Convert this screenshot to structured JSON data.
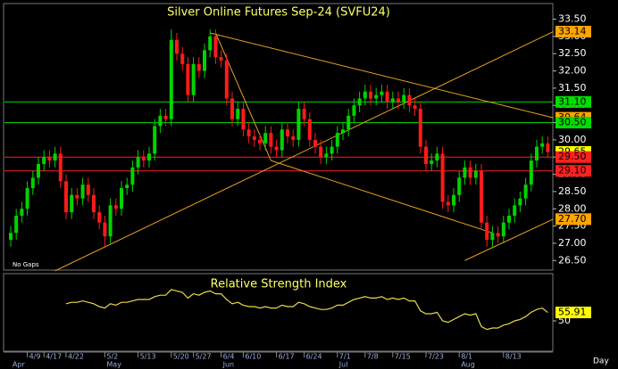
{
  "chart_data": [
    {
      "type": "candlestick",
      "title": "Silver Online Futures Sep-24 (SVFU24)",
      "note": "No Gaps",
      "x_label": "Day",
      "categories": [
        null,
        null,
        null,
        "4/9",
        null,
        null,
        "4/17",
        null,
        null,
        null,
        "4/22",
        null,
        null,
        null,
        null,
        null,
        null,
        "5/2",
        null,
        null,
        null,
        null,
        null,
        "5/13",
        null,
        null,
        null,
        null,
        null,
        "5/20",
        null,
        null,
        null,
        "5/27",
        null,
        null,
        null,
        null,
        "6/4",
        null,
        null,
        null,
        "6/10",
        null,
        null,
        null,
        null,
        null,
        "6/17",
        null,
        null,
        null,
        null,
        "6/24",
        null,
        null,
        null,
        null,
        null,
        "7/1",
        null,
        null,
        null,
        null,
        "7/8",
        null,
        null,
        null,
        null,
        "7/15",
        null,
        null,
        null,
        null,
        null,
        "7/23",
        null,
        null,
        null,
        null,
        null,
        "8/1",
        null,
        null,
        null,
        null,
        null,
        null,
        null,
        "8/13",
        null,
        null,
        null,
        null,
        null,
        null,
        null,
        null
      ],
      "months": [
        "Apr",
        null,
        null,
        null,
        null,
        null,
        null,
        null,
        null,
        null,
        null,
        null,
        null,
        null,
        null,
        null,
        null,
        "May",
        null,
        null,
        null,
        null,
        null,
        null,
        null,
        null,
        null,
        null,
        null,
        null,
        null,
        null,
        null,
        null,
        null,
        null,
        null,
        null,
        "Jun",
        null,
        null,
        null,
        null,
        null,
        null,
        null,
        null,
        null,
        null,
        null,
        null,
        null,
        null,
        null,
        null,
        null,
        null,
        null,
        null,
        "Jul",
        null,
        null,
        null,
        null,
        null,
        null,
        null,
        null,
        null,
        null,
        null,
        null,
        null,
        null,
        null,
        null,
        null,
        null,
        null,
        null,
        null,
        "Aug",
        null,
        null,
        null,
        null,
        null,
        null,
        null,
        null,
        null,
        null,
        null,
        null,
        null,
        null,
        null,
        null
      ],
      "open": [
        27.1,
        27.3,
        27.8,
        28.0,
        28.6,
        28.9,
        29.3,
        29.5,
        29.4,
        29.6,
        28.8,
        27.9,
        28.4,
        28.3,
        28.7,
        28.4,
        27.9,
        27.6,
        27.2,
        28.1,
        28.0,
        28.6,
        28.7,
        29.2,
        29.5,
        29.4,
        29.6,
        30.4,
        30.7,
        30.6,
        32.9,
        32.5,
        32.2,
        31.3,
        32.2,
        32.0,
        32.6,
        33.0,
        32.4,
        32.3,
        31.2,
        30.6,
        30.9,
        30.3,
        30.1,
        30.0,
        29.9,
        30.2,
        29.8,
        29.7,
        30.3,
        30.1,
        30.0,
        30.9,
        30.6,
        30.0,
        29.8,
        29.5,
        29.6,
        29.8,
        30.2,
        30.3,
        30.7,
        31.0,
        31.2,
        31.4,
        31.2,
        31.3,
        31.4,
        31.1,
        31.2,
        31.1,
        31.3,
        31.0,
        30.9,
        29.8,
        29.3,
        29.4,
        29.6,
        28.2,
        28.1,
        28.4,
        28.9,
        29.2,
        28.9,
        29.1,
        27.6,
        27.1,
        27.3,
        27.2,
        27.6,
        27.8,
        28.1,
        28.3,
        28.7,
        29.4,
        29.8,
        29.9
      ],
      "high": [
        27.5,
        28.0,
        28.2,
        28.8,
        29.1,
        29.5,
        29.7,
        29.7,
        29.8,
        29.8,
        29.0,
        28.6,
        28.6,
        28.9,
        28.9,
        28.6,
        28.1,
        27.8,
        28.3,
        28.3,
        28.8,
        28.9,
        29.4,
        29.7,
        29.7,
        29.8,
        30.6,
        30.9,
        30.9,
        33.2,
        33.1,
        32.7,
        32.4,
        32.4,
        32.4,
        32.8,
        33.2,
        33.2,
        32.6,
        32.5,
        31.4,
        31.1,
        31.1,
        30.5,
        30.3,
        30.2,
        30.4,
        30.4,
        30.0,
        30.5,
        30.5,
        30.3,
        31.1,
        31.1,
        30.8,
        30.2,
        30.0,
        29.8,
        30.0,
        30.4,
        30.5,
        30.9,
        31.2,
        31.4,
        31.6,
        31.6,
        31.5,
        31.6,
        31.6,
        31.4,
        31.4,
        31.5,
        31.5,
        31.2,
        31.1,
        30.0,
        29.6,
        29.8,
        29.8,
        28.4,
        28.6,
        29.1,
        29.4,
        29.4,
        29.3,
        29.3,
        27.8,
        27.5,
        27.5,
        27.8,
        28.0,
        28.3,
        28.5,
        28.9,
        29.6,
        30.0,
        30.1,
        30.1
      ],
      "low": [
        26.9,
        27.1,
        27.6,
        27.8,
        28.4,
        28.7,
        29.1,
        29.2,
        29.2,
        28.6,
        27.7,
        27.7,
        28.1,
        28.1,
        28.2,
        27.7,
        27.4,
        26.9,
        27.0,
        27.8,
        27.8,
        28.4,
        28.5,
        29.0,
        29.2,
        29.2,
        29.4,
        30.2,
        30.4,
        30.4,
        32.3,
        32.0,
        31.1,
        31.1,
        31.8,
        31.8,
        32.4,
        32.2,
        32.1,
        31.0,
        30.4,
        30.4,
        30.1,
        29.9,
        29.8,
        29.7,
        29.7,
        29.6,
        29.5,
        29.5,
        29.9,
        29.8,
        29.8,
        30.4,
        29.8,
        29.6,
        29.3,
        29.3,
        29.4,
        29.6,
        30.0,
        30.1,
        30.5,
        30.8,
        31.0,
        31.0,
        31.0,
        31.1,
        30.9,
        30.9,
        30.9,
        30.9,
        30.8,
        30.7,
        29.6,
        29.1,
        29.1,
        29.2,
        28.0,
        27.9,
        27.9,
        28.2,
        28.7,
        28.7,
        28.7,
        27.4,
        26.9,
        26.9,
        27.0,
        27.0,
        27.4,
        27.6,
        27.9,
        28.1,
        28.5,
        29.2,
        29.6,
        29.5
      ],
      "close": [
        27.3,
        27.8,
        28.0,
        28.6,
        28.9,
        29.3,
        29.5,
        29.4,
        29.6,
        28.8,
        27.9,
        28.4,
        28.3,
        28.7,
        28.4,
        27.9,
        27.6,
        27.2,
        28.1,
        28.0,
        28.6,
        28.7,
        29.2,
        29.5,
        29.4,
        29.6,
        30.4,
        30.7,
        30.6,
        32.9,
        32.5,
        32.2,
        31.3,
        32.2,
        32.0,
        32.6,
        33.0,
        32.4,
        32.3,
        31.2,
        30.6,
        30.9,
        30.3,
        30.1,
        30.0,
        29.9,
        30.2,
        29.8,
        29.7,
        30.3,
        30.1,
        30.0,
        30.9,
        30.6,
        30.0,
        29.8,
        29.5,
        29.6,
        29.8,
        30.2,
        30.3,
        30.7,
        31.0,
        31.2,
        31.4,
        31.2,
        31.3,
        31.4,
        31.1,
        31.2,
        31.1,
        31.3,
        31.0,
        30.9,
        29.8,
        29.3,
        29.4,
        29.6,
        28.2,
        28.1,
        28.4,
        28.9,
        29.2,
        28.9,
        29.1,
        27.6,
        27.1,
        27.3,
        27.2,
        27.6,
        27.8,
        28.1,
        28.3,
        28.7,
        29.4,
        29.8,
        29.9,
        29.65
      ],
      "up_color": "#00d400",
      "down_color": "#ff1a1a",
      "ylim": [
        26.3,
        33.85
      ],
      "yticks": [
        {
          "value": 26.5,
          "label": "26.50"
        },
        {
          "value": 27,
          "label": "27.00"
        },
        {
          "value": 27.5,
          "label": "27.50"
        },
        {
          "value": 28,
          "label": "28.00"
        },
        {
          "value": 28.5,
          "label": "28.50"
        },
        {
          "value": 29,
          "label": "29.00"
        },
        {
          "value": 29.5,
          "label": "29.50"
        },
        {
          "value": 30,
          "label": "30.00"
        },
        {
          "value": 30.5,
          "label": "30.50"
        },
        {
          "value": 31,
          "label": "31.00"
        },
        {
          "value": 31.5,
          "label": "31.50"
        },
        {
          "value": 32,
          "label": "32.00"
        },
        {
          "value": 32.5,
          "label": "32.50"
        },
        {
          "value": 33,
          "label": "33.00"
        },
        {
          "value": 33.5,
          "label": "33.50"
        }
      ],
      "levels": [
        {
          "value": 33.14,
          "label": "33.14",
          "color": "#ffa500",
          "line": false
        },
        {
          "value": 31.1,
          "label": "31.10",
          "color": "#00dd00",
          "line": true
        },
        {
          "value": 30.64,
          "label": "30.64",
          "color": "#ffa500",
          "line": false
        },
        {
          "value": 30.5,
          "label": "30.50",
          "color": "#00dd00",
          "line": true
        },
        {
          "value": 29.65,
          "label": "29.65",
          "color": "#ffff00",
          "line": false
        },
        {
          "value": 29.5,
          "label": "29.50",
          "color": "#ff2020",
          "line": true
        },
        {
          "value": 29.1,
          "label": "29.10",
          "color": "#ff2020",
          "line": true
        },
        {
          "value": 27.7,
          "label": "27.70",
          "color": "#ffa500",
          "line": false
        }
      ],
      "trendline_color": "#e8a020",
      "trendlines": [
        {
          "x": [
            8,
            98
          ],
          "y": [
            26.2,
            33.14
          ]
        },
        {
          "x": [
            36,
            98
          ],
          "y": [
            33.1,
            30.64
          ]
        },
        {
          "x": [
            37,
            47
          ],
          "y": [
            33.1,
            29.4
          ]
        },
        {
          "x": [
            47,
            87
          ],
          "y": [
            29.4,
            27.3
          ]
        },
        {
          "x": [
            82,
            98
          ],
          "y": [
            26.5,
            27.7
          ]
        }
      ]
    },
    {
      "type": "line",
      "title": "Relative Strength Index",
      "color": "#e8d84a",
      "values": [
        null,
        null,
        null,
        null,
        null,
        null,
        null,
        null,
        null,
        null,
        62,
        63,
        63,
        64,
        63,
        62,
        60,
        59,
        62,
        61,
        63,
        63,
        64,
        65,
        65,
        65,
        67,
        68,
        68,
        72,
        71,
        70,
        66,
        69,
        68,
        70,
        71,
        69,
        69,
        65,
        62,
        63,
        61,
        60,
        60,
        59,
        60,
        59,
        59,
        61,
        60,
        60,
        63,
        62,
        60,
        59,
        58,
        58,
        59,
        61,
        61,
        63,
        65,
        66,
        67,
        66,
        66,
        67,
        65,
        66,
        65,
        66,
        64,
        64,
        57,
        55,
        55,
        56,
        50,
        49,
        51,
        53,
        55,
        54,
        55,
        46,
        44,
        45,
        45,
        47,
        48,
        50,
        51,
        53,
        56,
        58,
        59,
        55.91
      ],
      "ylim": [
        30,
        80
      ],
      "yticks": [
        50
      ],
      "last": {
        "value": 55.91,
        "label": "55.91",
        "color": "#ffff00"
      }
    }
  ]
}
